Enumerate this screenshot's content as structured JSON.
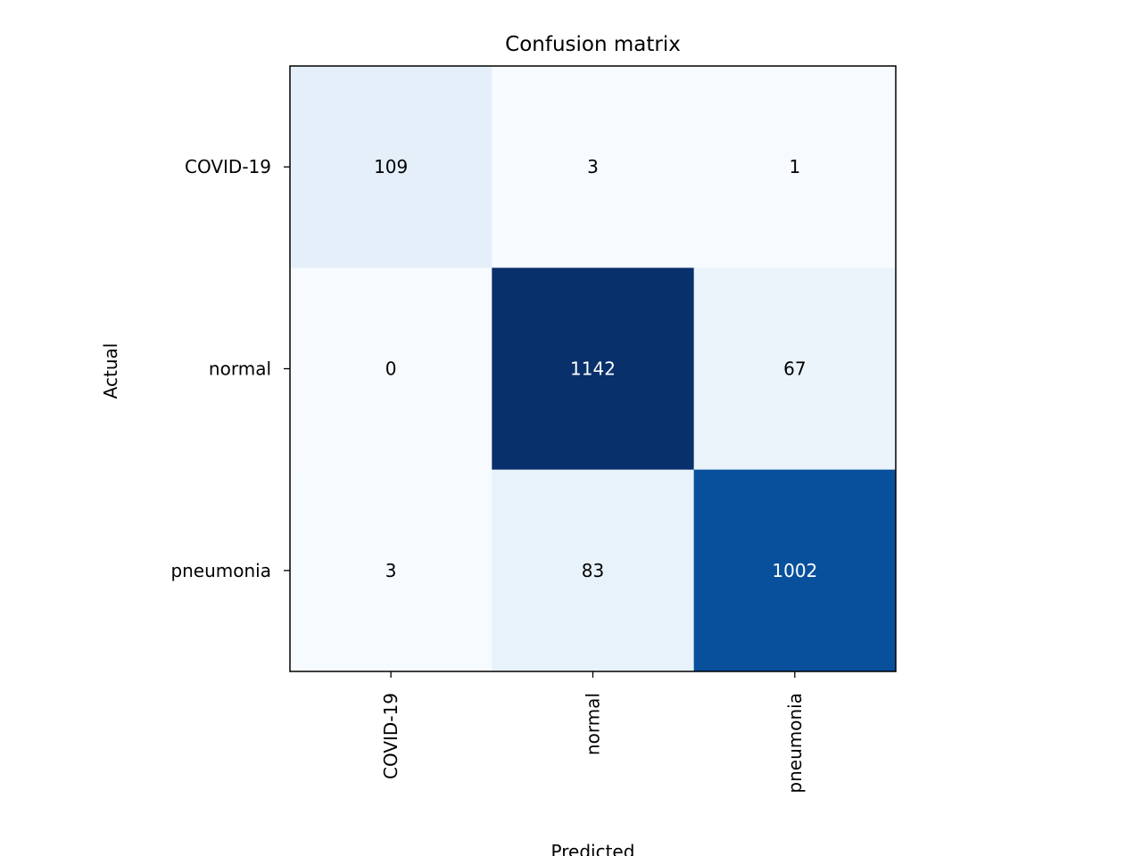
{
  "chart_data": {
    "type": "heatmap",
    "title": "Confusion matrix",
    "xlabel": "Predicted",
    "ylabel": "Actual",
    "x_categories": [
      "COVID-19",
      "normal",
      "pneumonia"
    ],
    "y_categories": [
      "COVID-19",
      "normal",
      "pneumonia"
    ],
    "values": [
      [
        109,
        3,
        1
      ],
      [
        0,
        1142,
        67
      ],
      [
        3,
        83,
        1002
      ]
    ],
    "colormap": "Blues",
    "colormap_stops": [
      "#f7fbff",
      "#deebf7",
      "#c6dbef",
      "#9ecae1",
      "#6baed6",
      "#4292c6",
      "#2171b5",
      "#08519c",
      "#08306b"
    ],
    "text_color_dark": "#000000",
    "text_color_light": "#ffffff",
    "grid": false,
    "legend": "none"
  }
}
